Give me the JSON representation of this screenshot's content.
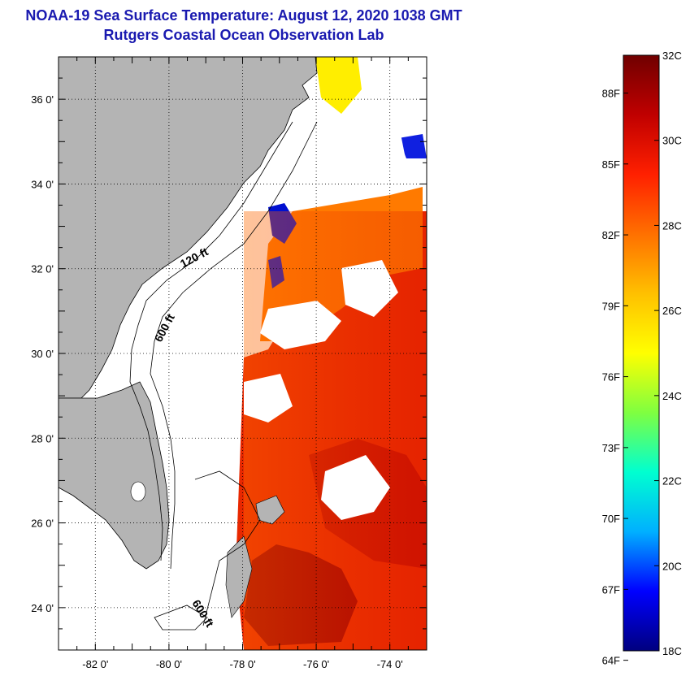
{
  "title": "NOAA-19 Sea Surface Temperature:  August 12, 2020 1038 GMT",
  "subtitle": "Rutgers Coastal Ocean Observation Lab",
  "map": {
    "lon_range": [
      -83,
      -73
    ],
    "lat_range": [
      23,
      37
    ],
    "lon_ticks": [
      -82,
      -80,
      -78,
      -76,
      -74
    ],
    "lat_ticks": [
      24,
      26,
      28,
      30,
      32,
      34,
      36
    ],
    "lon_tick_labels": [
      "-82 0'",
      "-80 0'",
      "-78 0'",
      "-76 0'",
      "-74 0'"
    ],
    "lat_tick_labels": [
      "24 0'",
      "26 0'",
      "28 0'",
      "30 0'",
      "32 0'",
      "34 0'",
      "36 0'"
    ],
    "contour_labels": [
      "120 ft",
      "600 ft",
      "600 ft"
    ],
    "colors": {
      "land": "#b4b4b4",
      "cloud": "#ffffff",
      "coastline": "#000000"
    }
  },
  "colorbar": {
    "min_c": 18,
    "max_c": 32,
    "celsius_labels": [
      "32C",
      "30C",
      "28C",
      "26C",
      "24C",
      "22C",
      "20C",
      "18C"
    ],
    "fahrenheit_labels": [
      "88F",
      "85F",
      "82F",
      "79F",
      "76F",
      "73F",
      "70F",
      "67F",
      "64F"
    ],
    "colors": [
      "#00007f",
      "#0000ff",
      "#00b0ff",
      "#00ffd0",
      "#7fff40",
      "#ffff00",
      "#ffc000",
      "#ff7000",
      "#ff2000",
      "#c00000",
      "#700000"
    ]
  }
}
